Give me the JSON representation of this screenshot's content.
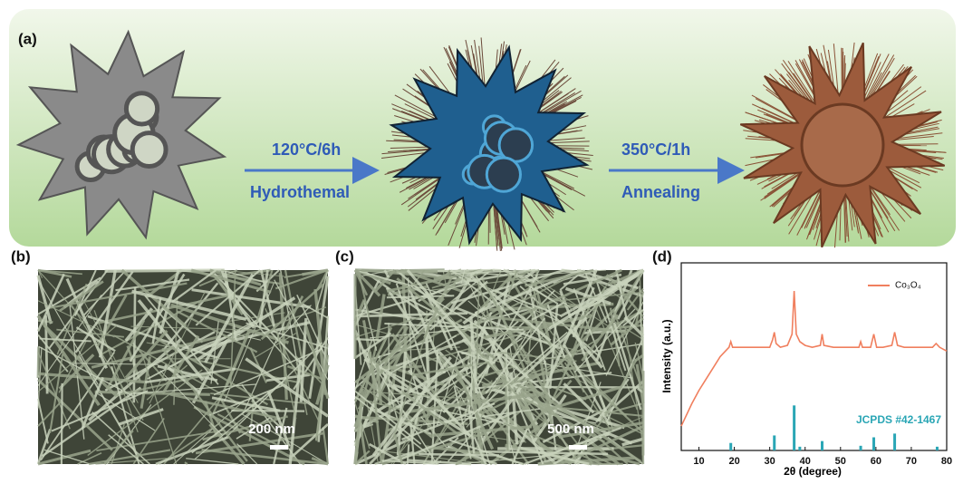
{
  "panel_labels": [
    "(a)",
    "(b)",
    "(c)",
    "(d)"
  ],
  "schematic": {
    "step1": {
      "condition": "120°C/6h",
      "process": "Hydrothemal"
    },
    "step2": {
      "condition": "350°C/1h",
      "process": "Annealing"
    }
  },
  "sem": [
    {
      "scale_bar": "200 nm"
    },
    {
      "scale_bar": "500 nm"
    }
  ],
  "chart_data": {
    "type": "line",
    "xlabel": "2θ (degree)",
    "ylabel": "Intensity (a.u.)",
    "xlim": [
      5,
      80
    ],
    "xticks": [
      10,
      20,
      30,
      40,
      50,
      60,
      70,
      80
    ],
    "ylim": [
      0,
      100
    ],
    "legend": "upper right",
    "series": [
      {
        "name": "Co₃O₄",
        "color": "#f07f5e",
        "x": [
          5,
          6,
          8,
          10,
          12,
          14,
          16,
          18,
          18.5,
          19,
          19.5,
          21,
          24,
          27,
          30,
          30.8,
          31.3,
          31.8,
          33,
          35,
          36.3,
          36.9,
          37.5,
          38.5,
          40,
          42,
          44.3,
          44.8,
          45.3,
          48,
          52,
          55.2,
          55.7,
          56.2,
          58.5,
          59.4,
          60.2,
          62,
          64.5,
          65.3,
          66.1,
          68,
          72,
          76,
          77,
          78,
          80
        ],
        "values": [
          13,
          17,
          25,
          32,
          38,
          44,
          50,
          54,
          55,
          58,
          55,
          55,
          55,
          55,
          55,
          59,
          63,
          57,
          55,
          56,
          62,
          85,
          62,
          58,
          56,
          55,
          56,
          62,
          56,
          55,
          55,
          55,
          58,
          55,
          55,
          62,
          55,
          55,
          56,
          63,
          56,
          55,
          55,
          55,
          57,
          55,
          53
        ]
      }
    ],
    "reference": {
      "name": "JCPDS #42-1467",
      "color": "#2aa6b5",
      "x": [
        19,
        31.3,
        36.9,
        38.5,
        44.8,
        55.7,
        59.4,
        65.3,
        77.3
      ],
      "values": [
        4,
        8,
        24,
        2,
        5,
        2.5,
        7,
        9,
        2
      ]
    }
  }
}
